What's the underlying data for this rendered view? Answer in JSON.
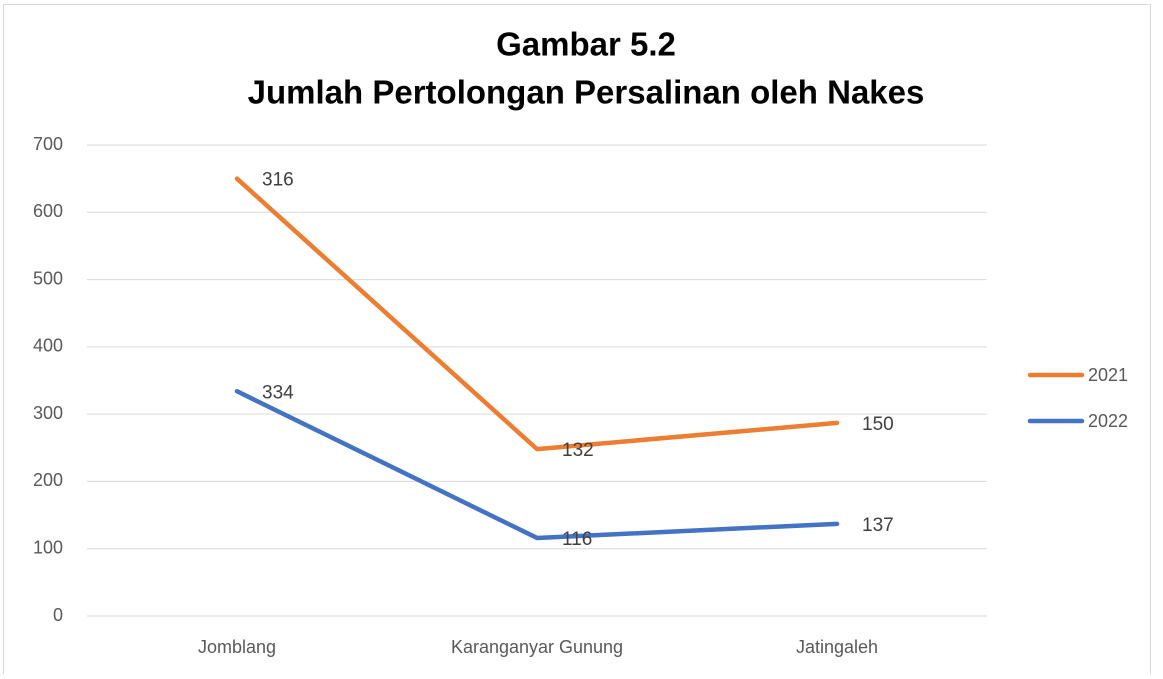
{
  "chart_data": {
    "type": "line",
    "stacked": true,
    "title": "Gambar 5.2",
    "subtitle": "Jumlah Pertolongan Persalinan oleh Nakes",
    "categories": [
      "Jomblang",
      "Karanganyar Gunung",
      "Jatingaleh"
    ],
    "series": [
      {
        "name": "2021",
        "color": "#ed7d31",
        "values": [
          316,
          132,
          150
        ]
      },
      {
        "name": "2022",
        "color": "#4472c4",
        "values": [
          334,
          116,
          137
        ]
      }
    ],
    "ylim": [
      0,
      700
    ],
    "yticks": [
      0,
      100,
      200,
      300,
      400,
      500,
      600,
      700
    ],
    "grid": true,
    "legend": "right"
  }
}
